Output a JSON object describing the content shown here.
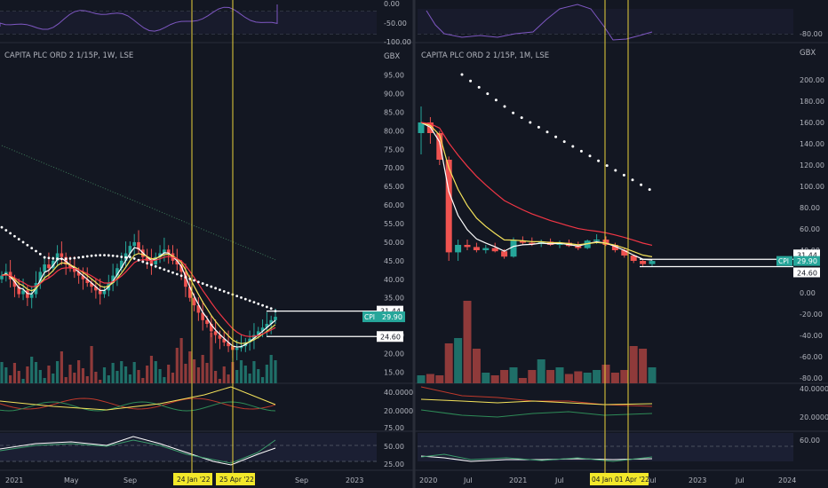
{
  "colors": {
    "bg": "#131722",
    "divider": "#2a2e39",
    "grid": "#1e222d",
    "axis_text": "#b2b5be",
    "up": "#26a69a",
    "down": "#ef5350",
    "vol_up": "#1f6f68",
    "vol_down": "#8f3a3a",
    "ema_fast": "#ffffff",
    "ema_mid": "#f5e35b",
    "ema_slow": "#f23645",
    "dots": "#ffffff",
    "sma_dotted": "#3f7a5a",
    "osc": "#7e57c2",
    "vline": "#e8d03a",
    "tag_bg": "#f2e82a",
    "hline": "#ffffff",
    "cpi_bg": "#26a69a"
  },
  "left_chart": {
    "title": "CAPITA PLC ORD 2 1/15P, 1W, LSE",
    "currency": "GBX",
    "top_osc_ticks": [
      "0.00",
      "-50.00",
      "-100.00"
    ],
    "price_ticks": [
      "95.00",
      "90.00",
      "85.00",
      "80.00",
      "75.00",
      "70.00",
      "65.00",
      "60.00",
      "55.00",
      "50.00",
      "45.00",
      "40.00",
      "35.00",
      "30.00",
      "25.00",
      "20.00",
      "15.00"
    ],
    "dmi_ticks": [
      "40.0000",
      "20.0000"
    ],
    "rsi_ticks": [
      "75.00",
      "50.00",
      "25.00"
    ],
    "x_ticks": [
      "2021",
      "May",
      "Sep",
      "Sep",
      "2023"
    ],
    "date_tags": [
      "24 Jan '22",
      "25 Apr '22"
    ],
    "hline_labels": [
      "31.44",
      "24.60"
    ],
    "cpi_label": "CPI",
    "cpi_value": "29.90"
  },
  "right_chart": {
    "title": "CAPITA PLC ORD 2 1/15P, 1M, LSE",
    "currency": "GBX",
    "top_osc_ticks": [
      "-80.00"
    ],
    "price_ticks": [
      "200.00",
      "180.00",
      "160.00",
      "140.00",
      "120.00",
      "100.00",
      "80.00",
      "60.00",
      "40.00",
      "20.00",
      "0.00",
      "-20.00",
      "-40.00",
      "-60.00",
      "-80.00"
    ],
    "dmi_ticks": [
      "40.0000",
      "20.0000"
    ],
    "rsi_ticks": [
      "60.00"
    ],
    "x_ticks": [
      "2020",
      "Jul",
      "2021",
      "Jul",
      "Jul",
      "2023",
      "Jul",
      "2024"
    ],
    "date_tags": [
      "04 Jan",
      "01 Apr '22"
    ],
    "hline_labels": [
      "31.44",
      "24.60"
    ],
    "cpi_label": "CPI",
    "cpi_value": "29.90"
  },
  "chart_data": [
    {
      "type": "candlestick",
      "title": "CAPITA PLC ORD 2 1/15P, 1W, LSE",
      "ylabel": "GBX",
      "ylim": [
        12,
        98
      ],
      "period": "weekly, 2021 – mid 2022",
      "close_series": [
        41,
        42,
        40,
        38,
        36,
        37,
        35,
        36,
        39,
        42,
        44,
        43,
        45,
        47,
        46,
        44,
        43,
        42,
        41,
        40,
        39,
        38,
        37,
        36,
        37,
        39,
        41,
        43,
        45,
        47,
        49,
        50,
        48,
        46,
        45,
        44,
        46,
        47,
        48,
        47,
        45,
        44,
        42,
        38,
        35,
        33,
        31,
        29,
        28,
        26,
        25,
        24,
        23,
        22,
        21,
        21.5,
        22,
        23,
        24,
        25,
        26,
        27,
        28,
        29,
        29.9
      ],
      "indicators": {
        "parabolic_sar_last": 31.44,
        "support_line": 24.6,
        "last_close": 29.9
      },
      "vertical_markers": [
        "24 Jan '22",
        "25 Apr '22"
      ]
    },
    {
      "type": "candlestick",
      "title": "CAPITA PLC ORD 2 1/15P, 1M, LSE",
      "ylabel": "GBX",
      "ylim": [
        -85,
        215
      ],
      "period": "monthly, 2020 – mid 2022",
      "candles": [
        {
          "o": 150,
          "h": 175,
          "l": 130,
          "c": 160
        },
        {
          "o": 160,
          "h": 165,
          "l": 140,
          "c": 150
        },
        {
          "o": 150,
          "h": 152,
          "l": 120,
          "c": 125
        },
        {
          "o": 125,
          "h": 128,
          "l": 30,
          "c": 38
        },
        {
          "o": 38,
          "h": 50,
          "l": 30,
          "c": 45
        },
        {
          "o": 45,
          "h": 50,
          "l": 40,
          "c": 43
        },
        {
          "o": 43,
          "h": 47,
          "l": 38,
          "c": 40
        },
        {
          "o": 40,
          "h": 45,
          "l": 37,
          "c": 42
        },
        {
          "o": 42,
          "h": 47,
          "l": 38,
          "c": 39
        },
        {
          "o": 39,
          "h": 41,
          "l": 32,
          "c": 34
        },
        {
          "o": 34,
          "h": 52,
          "l": 33,
          "c": 49
        },
        {
          "o": 49,
          "h": 53,
          "l": 45,
          "c": 47
        },
        {
          "o": 47,
          "h": 52,
          "l": 44,
          "c": 46
        },
        {
          "o": 46,
          "h": 50,
          "l": 43,
          "c": 48
        },
        {
          "o": 48,
          "h": 51,
          "l": 44,
          "c": 45
        },
        {
          "o": 45,
          "h": 49,
          "l": 42,
          "c": 47
        },
        {
          "o": 47,
          "h": 50,
          "l": 43,
          "c": 44
        },
        {
          "o": 44,
          "h": 48,
          "l": 40,
          "c": 42
        },
        {
          "o": 42,
          "h": 50,
          "l": 41,
          "c": 49
        },
        {
          "o": 49,
          "h": 55,
          "l": 46,
          "c": 50
        },
        {
          "o": 50,
          "h": 53,
          "l": 44,
          "c": 45
        },
        {
          "o": 45,
          "h": 47,
          "l": 38,
          "c": 40
        },
        {
          "o": 40,
          "h": 42,
          "l": 33,
          "c": 35
        },
        {
          "o": 35,
          "h": 36,
          "l": 28,
          "c": 30
        },
        {
          "o": 30,
          "h": 32,
          "l": 24.6,
          "c": 27
        },
        {
          "o": 27,
          "h": 31,
          "l": 25,
          "c": 29.9
        }
      ],
      "indicators": {
        "parabolic_sar_last": 31.44,
        "support_line": 24.6,
        "last_close": 29.9
      },
      "vertical_markers": [
        "04 Jan",
        "01 Apr '22"
      ]
    }
  ]
}
